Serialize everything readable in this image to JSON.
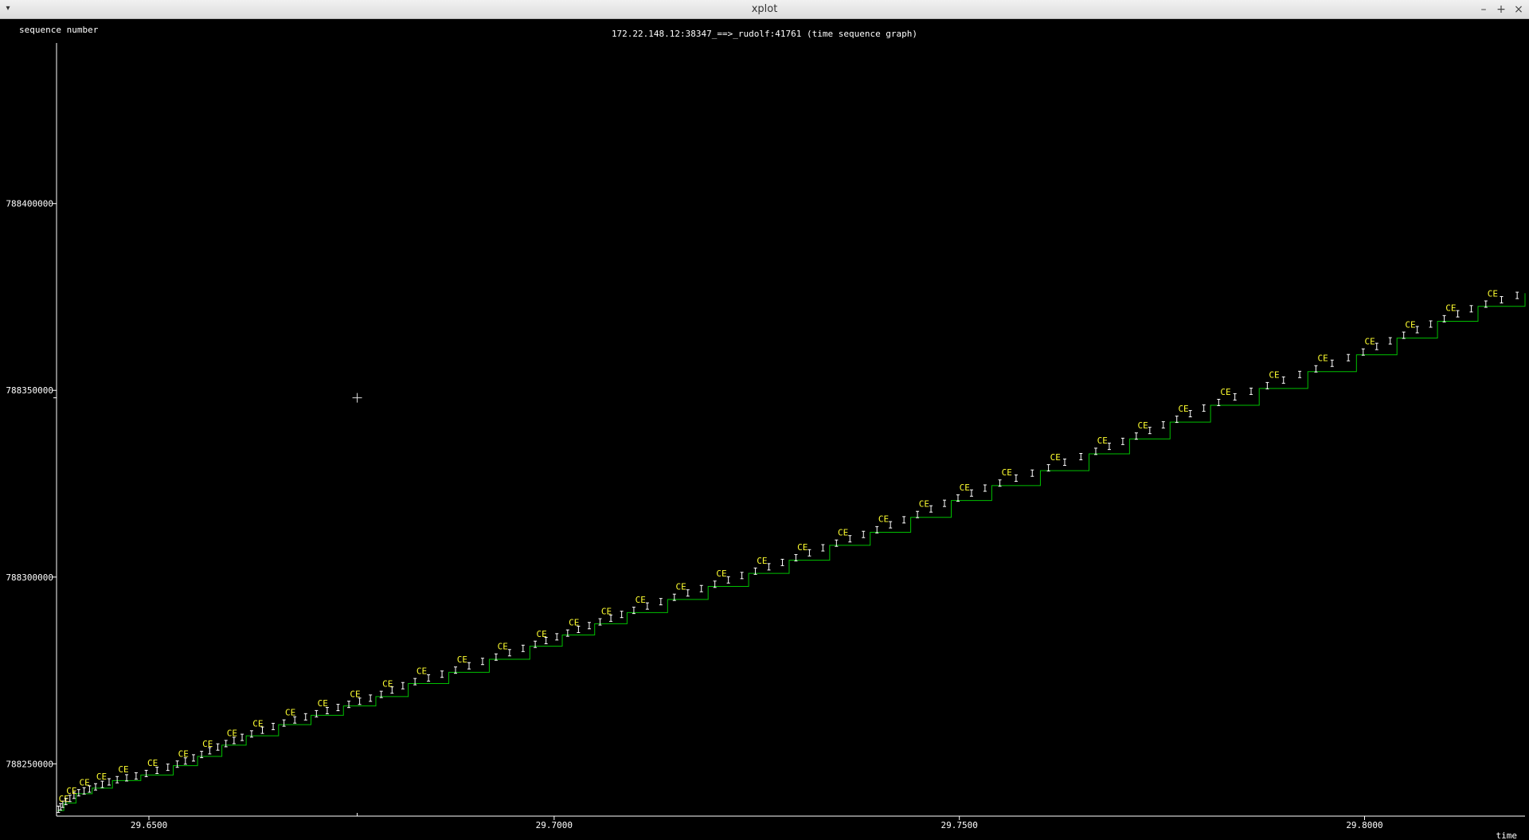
{
  "window": {
    "title": "xplot",
    "menu_icon": "▾",
    "minimize_icon": "–",
    "maximize_icon": "+",
    "close_icon": "×"
  },
  "colors": {
    "background": "#000000",
    "axis": "#ffffff",
    "text": "#ffffff",
    "seq_line": "#00c000",
    "segment": "#ffffff",
    "ack_label": "#ffff30",
    "titlebar": "#e8e8e8"
  },
  "chart_data": {
    "type": "line",
    "title": "172.22.148.12:38347_==>_rudolf:41761 (time sequence graph)",
    "ylabel": "sequence number",
    "xlabel": "time",
    "xlim": [
      29.6386,
      29.8198
    ],
    "ylim": [
      788236000,
      788443000
    ],
    "x_ticks": [
      29.65,
      29.7,
      29.75,
      29.8
    ],
    "x_tick_labels": [
      "29.6500",
      "29.7000",
      "29.7500",
      "29.8000"
    ],
    "y_ticks": [
      788250000,
      788300000,
      788350000,
      788400000
    ],
    "y_tick_labels": [
      "788250000",
      "788300000",
      "788350000",
      "788400000"
    ],
    "grid": false,
    "series": [
      {
        "points": [
          [
            29.6387,
            788237500
          ],
          [
            29.6395,
            788239500
          ],
          [
            29.641,
            788242000
          ],
          [
            29.643,
            788243500
          ],
          [
            29.6455,
            788245500
          ],
          [
            29.649,
            788247000
          ],
          [
            29.653,
            788249500
          ],
          [
            29.656,
            788252000
          ],
          [
            29.659,
            788255000
          ],
          [
            29.662,
            788257500
          ],
          [
            29.666,
            788260500
          ],
          [
            29.67,
            788263000
          ],
          [
            29.674,
            788265500
          ],
          [
            29.678,
            788268000
          ],
          [
            29.682,
            788271500
          ],
          [
            29.687,
            788274500
          ],
          [
            29.692,
            788278000
          ],
          [
            29.697,
            788281500
          ],
          [
            29.701,
            788284500
          ],
          [
            29.705,
            788287500
          ],
          [
            29.709,
            788290500
          ],
          [
            29.714,
            788294000
          ],
          [
            29.719,
            788297500
          ],
          [
            29.724,
            788301000
          ],
          [
            29.729,
            788304500
          ],
          [
            29.734,
            788308500
          ],
          [
            29.739,
            788312000
          ],
          [
            29.744,
            788316000
          ],
          [
            29.749,
            788320500
          ],
          [
            29.754,
            788324500
          ],
          [
            29.76,
            788328500
          ],
          [
            29.766,
            788333000
          ],
          [
            29.771,
            788337000
          ],
          [
            29.776,
            788341500
          ],
          [
            29.781,
            788346000
          ],
          [
            29.787,
            788350500
          ],
          [
            29.793,
            788355000
          ],
          [
            29.799,
            788359500
          ],
          [
            29.804,
            788364000
          ],
          [
            29.809,
            788368500
          ],
          [
            29.814,
            788372500
          ],
          [
            29.8198,
            788376000
          ]
        ]
      }
    ],
    "markers": "CE",
    "cursor": {
      "x": 29.6757,
      "y": 788348000
    }
  }
}
